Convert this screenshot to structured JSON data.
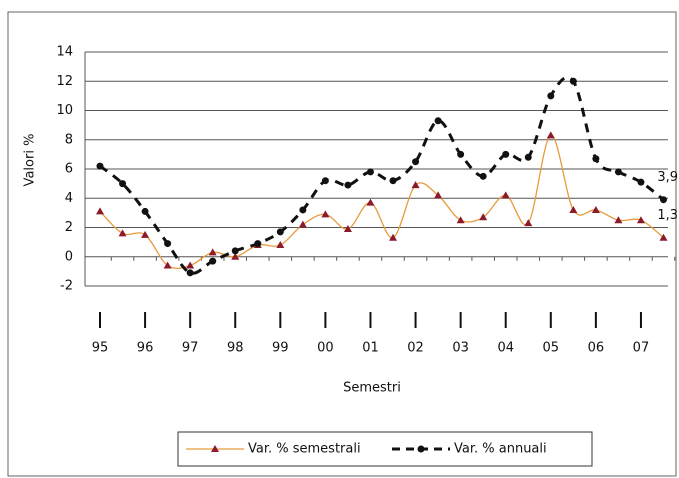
{
  "chart_data": {
    "type": "line",
    "y_label": "Valori %",
    "x_label": "Semestri",
    "categories": [
      "95",
      null,
      "96",
      null,
      "97",
      null,
      "98",
      null,
      "99",
      null,
      "00",
      null,
      "01",
      null,
      "02",
      null,
      "03",
      null,
      "04",
      null,
      "05",
      null,
      "06",
      null,
      "07",
      null
    ],
    "series": [
      {
        "name": "Var. % semestrali",
        "color": "#e89a3c",
        "marker_color": "#8b1a2a",
        "marker": "triangle",
        "dash": false,
        "values": [
          3.1,
          1.6,
          1.5,
          -0.6,
          -0.6,
          0.3,
          0.0,
          0.8,
          0.8,
          2.2,
          2.9,
          1.9,
          3.7,
          1.3,
          4.9,
          4.2,
          2.5,
          2.7,
          4.2,
          2.3,
          8.3,
          3.2,
          3.2,
          2.5,
          2.5,
          1.3
        ],
        "value_labels": [
          null,
          null,
          null,
          null,
          null,
          null,
          null,
          null,
          null,
          null,
          null,
          null,
          null,
          null,
          null,
          null,
          null,
          null,
          null,
          null,
          null,
          null,
          null,
          null,
          null,
          "1,3"
        ]
      },
      {
        "name": "Var. % annuali",
        "color": "#111111",
        "marker_color": "#111111",
        "marker": "circle",
        "dash": true,
        "values": [
          6.2,
          5.0,
          3.1,
          0.9,
          -1.1,
          -0.3,
          0.4,
          0.9,
          1.7,
          3.2,
          5.2,
          4.9,
          5.8,
          5.2,
          6.5,
          9.3,
          7.0,
          5.5,
          7.0,
          6.8,
          11.0,
          12.0,
          6.7,
          5.8,
          5.1,
          3.9
        ],
        "value_labels": [
          null,
          null,
          null,
          null,
          null,
          null,
          null,
          null,
          null,
          null,
          null,
          null,
          null,
          null,
          null,
          null,
          null,
          null,
          null,
          null,
          null,
          null,
          null,
          null,
          null,
          "3,9"
        ]
      }
    ],
    "ylim": [
      -2,
      14
    ],
    "yticks": [
      14,
      12,
      10,
      8,
      6,
      4,
      2,
      0,
      -2
    ],
    "grid": true,
    "legend": "bottom"
  }
}
